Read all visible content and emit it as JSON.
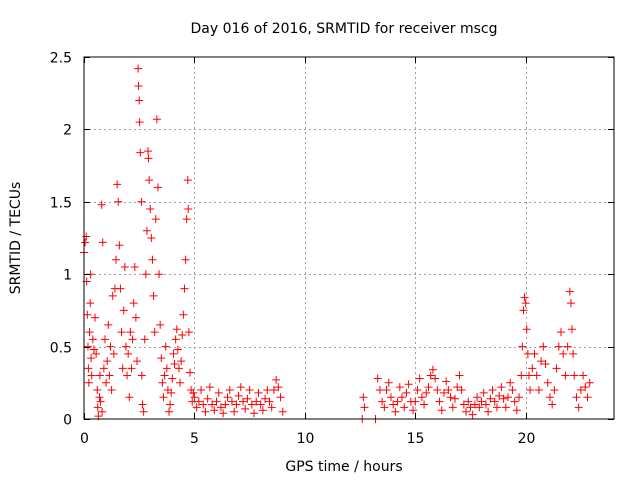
{
  "chart_data": {
    "type": "scatter",
    "title": "Day 016 of 2016, SRMTID for receiver mscg",
    "xlabel": "GPS time / hours",
    "ylabel": "SRMTID / TECUs",
    "xlim": [
      0,
      24
    ],
    "ylim": [
      0,
      2.5
    ],
    "xticks": [
      0,
      5,
      10,
      15,
      20
    ],
    "xtick_labels": [
      "0",
      "5",
      "10",
      "15",
      "20"
    ],
    "yticks": [
      0,
      0.5,
      1,
      1.5,
      2,
      2.5
    ],
    "ytick_labels": [
      "0",
      "0.5",
      "1",
      "1.5",
      "2",
      "2.5"
    ],
    "grid": true,
    "marker": "+",
    "colors": {
      "marker": "#ff0000",
      "grid": "#a0a0a0",
      "axis": "#000000"
    },
    "series": [
      {
        "name": "SRMTID",
        "points": [
          [
            0.0,
            1.15
          ],
          [
            0.05,
            1.22
          ],
          [
            0.1,
            1.26
          ],
          [
            0.12,
            0.95
          ],
          [
            0.15,
            0.72
          ],
          [
            0.18,
            0.5
          ],
          [
            0.2,
            0.35
          ],
          [
            0.22,
            0.25
          ],
          [
            0.25,
            0.6
          ],
          [
            0.28,
            0.8
          ],
          [
            0.3,
            1.0
          ],
          [
            0.32,
            0.42
          ],
          [
            0.35,
            0.3
          ],
          [
            0.4,
            0.55
          ],
          [
            0.45,
            0.48
          ],
          [
            0.5,
            0.7
          ],
          [
            0.55,
            0.45
          ],
          [
            0.6,
            0.2
          ],
          [
            0.62,
            0.08
          ],
          [
            0.65,
            0.02
          ],
          [
            0.7,
            0.15
          ],
          [
            0.72,
            0.3
          ],
          [
            0.75,
            0.12
          ],
          [
            0.8,
            1.48
          ],
          [
            0.82,
            0.05
          ],
          [
            0.85,
            1.22
          ],
          [
            0.9,
            0.35
          ],
          [
            0.95,
            0.55
          ],
          [
            1.0,
            0.25
          ],
          [
            1.05,
            0.4
          ],
          [
            1.1,
            0.65
          ],
          [
            1.15,
            0.3
          ],
          [
            1.2,
            0.5
          ],
          [
            1.25,
            0.2
          ],
          [
            1.3,
            0.85
          ],
          [
            1.35,
            0.45
          ],
          [
            1.4,
            0.9
          ],
          [
            1.45,
            1.1
          ],
          [
            1.5,
            1.62
          ],
          [
            1.55,
            1.5
          ],
          [
            1.6,
            1.2
          ],
          [
            1.65,
            0.9
          ],
          [
            1.7,
            0.6
          ],
          [
            1.75,
            0.35
          ],
          [
            1.8,
            0.75
          ],
          [
            1.85,
            1.05
          ],
          [
            1.9,
            0.5
          ],
          [
            1.95,
            0.3
          ],
          [
            2.0,
            0.45
          ],
          [
            2.05,
            0.15
          ],
          [
            2.1,
            0.6
          ],
          [
            2.15,
            0.35
          ],
          [
            2.2,
            0.55
          ],
          [
            2.25,
            0.8
          ],
          [
            2.3,
            1.05
          ],
          [
            2.35,
            0.7
          ],
          [
            2.4,
            0.4
          ],
          [
            2.45,
            2.42
          ],
          [
            2.47,
            2.3
          ],
          [
            2.5,
            2.2
          ],
          [
            2.52,
            2.05
          ],
          [
            2.55,
            1.84
          ],
          [
            2.6,
            1.5
          ],
          [
            2.62,
            0.3
          ],
          [
            2.65,
            0.1
          ],
          [
            2.7,
            0.05
          ],
          [
            2.75,
            0.55
          ],
          [
            2.8,
            1.0
          ],
          [
            2.85,
            1.3
          ],
          [
            2.9,
            1.85
          ],
          [
            2.92,
            1.8
          ],
          [
            2.95,
            1.65
          ],
          [
            3.0,
            1.45
          ],
          [
            3.05,
            1.25
          ],
          [
            3.1,
            1.1
          ],
          [
            3.15,
            0.85
          ],
          [
            3.2,
            0.6
          ],
          [
            3.25,
            1.38
          ],
          [
            3.3,
            2.07
          ],
          [
            3.35,
            1.6
          ],
          [
            3.4,
            1.0
          ],
          [
            3.45,
            0.65
          ],
          [
            3.5,
            0.42
          ],
          [
            3.55,
            0.25
          ],
          [
            3.6,
            0.15
          ],
          [
            3.65,
            0.3
          ],
          [
            3.7,
            0.5
          ],
          [
            3.75,
            0.35
          ],
          [
            3.8,
            0.2
          ],
          [
            3.85,
            0.05
          ],
          [
            3.9,
            0.1
          ],
          [
            3.95,
            0.18
          ],
          [
            4.0,
            0.28
          ],
          [
            4.05,
            0.45
          ],
          [
            4.1,
            0.38
          ],
          [
            4.15,
            0.55
          ],
          [
            4.2,
            0.62
          ],
          [
            4.25,
            0.48
          ],
          [
            4.3,
            0.35
          ],
          [
            4.35,
            0.25
          ],
          [
            4.4,
            0.4
          ],
          [
            4.45,
            0.58
          ],
          [
            4.5,
            0.72
          ],
          [
            4.55,
            0.9
          ],
          [
            4.6,
            1.1
          ],
          [
            4.65,
            1.38
          ],
          [
            4.7,
            1.65
          ],
          [
            4.72,
            1.45
          ],
          [
            4.75,
            0.6
          ],
          [
            4.8,
            0.32
          ],
          [
            4.85,
            0.2
          ],
          [
            4.9,
            0.12
          ],
          [
            4.95,
            0.18
          ],
          [
            5.0,
            0.15
          ],
          [
            5.1,
            0.08
          ],
          [
            5.2,
            0.12
          ],
          [
            5.3,
            0.2
          ],
          [
            5.4,
            0.1
          ],
          [
            5.5,
            0.05
          ],
          [
            5.6,
            0.14
          ],
          [
            5.7,
            0.22
          ],
          [
            5.8,
            0.1
          ],
          [
            5.9,
            0.06
          ],
          [
            6.0,
            0.12
          ],
          [
            6.1,
            0.18
          ],
          [
            6.2,
            0.08
          ],
          [
            6.3,
            0.04
          ],
          [
            6.4,
            0.1
          ],
          [
            6.5,
            0.15
          ],
          [
            6.6,
            0.2
          ],
          [
            6.7,
            0.12
          ],
          [
            6.8,
            0.05
          ],
          [
            6.9,
            0.1
          ],
          [
            7.0,
            0.16
          ],
          [
            7.1,
            0.22
          ],
          [
            7.2,
            0.12
          ],
          [
            7.3,
            0.07
          ],
          [
            7.4,
            0.14
          ],
          [
            7.5,
            0.2
          ],
          [
            7.6,
            0.1
          ],
          [
            7.7,
            0.04
          ],
          [
            7.8,
            0.12
          ],
          [
            7.9,
            0.18
          ],
          [
            8.0,
            0.1
          ],
          [
            8.1,
            0.06
          ],
          [
            8.2,
            0.14
          ],
          [
            8.3,
            0.2
          ],
          [
            8.4,
            0.12
          ],
          [
            8.5,
            0.08
          ],
          [
            8.6,
            0.2
          ],
          [
            8.7,
            0.27
          ],
          [
            8.8,
            0.22
          ],
          [
            8.9,
            0.15
          ],
          [
            9.0,
            0.05
          ],
          [
            12.6,
            0.0
          ],
          [
            12.65,
            0.15
          ],
          [
            12.7,
            0.08
          ],
          [
            13.2,
            0.0
          ],
          [
            13.3,
            0.28
          ],
          [
            13.4,
            0.2
          ],
          [
            13.5,
            0.12
          ],
          [
            13.6,
            0.08
          ],
          [
            13.7,
            0.2
          ],
          [
            13.8,
            0.25
          ],
          [
            13.9,
            0.15
          ],
          [
            14.0,
            0.1
          ],
          [
            14.1,
            0.05
          ],
          [
            14.2,
            0.12
          ],
          [
            14.3,
            0.22
          ],
          [
            14.4,
            0.15
          ],
          [
            14.5,
            0.08
          ],
          [
            14.6,
            0.18
          ],
          [
            14.7,
            0.24
          ],
          [
            14.8,
            0.12
          ],
          [
            14.9,
            0.06
          ],
          [
            15.0,
            0.12
          ],
          [
            15.1,
            0.2
          ],
          [
            15.2,
            0.28
          ],
          [
            15.3,
            0.15
          ],
          [
            15.4,
            0.1
          ],
          [
            15.5,
            0.18
          ],
          [
            15.6,
            0.22
          ],
          [
            15.7,
            0.3
          ],
          [
            15.8,
            0.34
          ],
          [
            15.9,
            0.28
          ],
          [
            16.0,
            0.2
          ],
          [
            16.1,
            0.12
          ],
          [
            16.2,
            0.06
          ],
          [
            16.3,
            0.18
          ],
          [
            16.4,
            0.26
          ],
          [
            16.5,
            0.2
          ],
          [
            16.6,
            0.15
          ],
          [
            16.7,
            0.08
          ],
          [
            16.8,
            0.14
          ],
          [
            16.9,
            0.22
          ],
          [
            17.0,
            0.3
          ],
          [
            17.1,
            0.2
          ],
          [
            17.2,
            0.1
          ],
          [
            17.3,
            0.05
          ],
          [
            17.4,
            0.12
          ],
          [
            17.5,
            0.08
          ],
          [
            17.6,
            0.03
          ],
          [
            17.7,
            0.1
          ],
          [
            17.8,
            0.15
          ],
          [
            17.9,
            0.08
          ],
          [
            18.0,
            0.12
          ],
          [
            18.1,
            0.18
          ],
          [
            18.2,
            0.1
          ],
          [
            18.3,
            0.05
          ],
          [
            18.4,
            0.14
          ],
          [
            18.5,
            0.2
          ],
          [
            18.6,
            0.12
          ],
          [
            18.7,
            0.08
          ],
          [
            18.8,
            0.16
          ],
          [
            18.9,
            0.22
          ],
          [
            19.0,
            0.14
          ],
          [
            19.1,
            0.08
          ],
          [
            19.2,
            0.15
          ],
          [
            19.3,
            0.25
          ],
          [
            19.4,
            0.2
          ],
          [
            19.5,
            0.12
          ],
          [
            19.6,
            0.06
          ],
          [
            19.7,
            0.15
          ],
          [
            19.8,
            0.3
          ],
          [
            19.85,
            0.5
          ],
          [
            19.9,
            0.75
          ],
          [
            19.95,
            0.84
          ],
          [
            20.0,
            0.8
          ],
          [
            20.05,
            0.62
          ],
          [
            20.1,
            0.45
          ],
          [
            20.15,
            0.3
          ],
          [
            20.2,
            0.2
          ],
          [
            20.3,
            0.35
          ],
          [
            20.4,
            0.45
          ],
          [
            20.5,
            0.3
          ],
          [
            20.6,
            0.2
          ],
          [
            20.7,
            0.4
          ],
          [
            20.8,
            0.5
          ],
          [
            20.9,
            0.38
          ],
          [
            21.0,
            0.25
          ],
          [
            21.1,
            0.15
          ],
          [
            21.2,
            0.1
          ],
          [
            21.3,
            0.2
          ],
          [
            21.4,
            0.35
          ],
          [
            21.5,
            0.5
          ],
          [
            21.6,
            0.6
          ],
          [
            21.7,
            0.45
          ],
          [
            21.8,
            0.3
          ],
          [
            21.9,
            0.5
          ],
          [
            22.0,
            0.88
          ],
          [
            22.05,
            0.8
          ],
          [
            22.1,
            0.62
          ],
          [
            22.15,
            0.45
          ],
          [
            22.2,
            0.3
          ],
          [
            22.3,
            0.15
          ],
          [
            22.4,
            0.08
          ],
          [
            22.5,
            0.2
          ],
          [
            22.6,
            0.3
          ],
          [
            22.7,
            0.22
          ],
          [
            22.8,
            0.15
          ],
          [
            22.9,
            0.25
          ]
        ]
      }
    ]
  }
}
